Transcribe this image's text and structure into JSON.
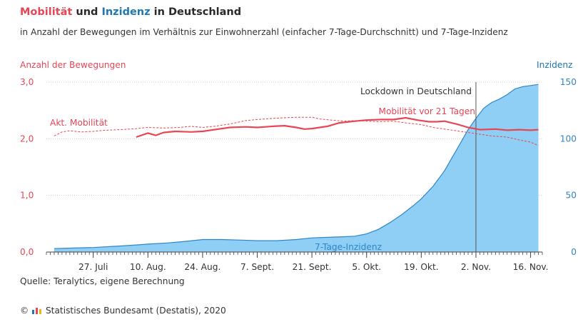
{
  "header": {
    "title_part1": "Mobilität",
    "title_part2": " und ",
    "title_part3": "Inzidenz",
    "title_part4": " in Deutschland",
    "subtitle": "in Anzahl der Bewegungen im Verhältnis zur Einwohnerzahl (einfacher 7-Tage-Durchschnitt) und 7-Tage-Inzidenz"
  },
  "footer": {
    "source": "Quelle: Teralytics, eigene Berechnung",
    "copyright_symbol": "©",
    "copyright_text": "Statistisches Bundesamt (Destatis), 2020"
  },
  "colors": {
    "mobility": "#e84655",
    "incidence_line": "#2f86c6",
    "incidence_fill": "#8fcff5",
    "axis": "#444444",
    "gridline": "#cccccc"
  },
  "chart_data": {
    "type": "line",
    "ylabel_left": "Anzahl der Bewegungen",
    "ylabel_right": "Inzidenz",
    "yticks_left": [
      "0,0",
      "1,0",
      "2,0",
      "3,0"
    ],
    "yticks_right": [
      "0",
      "50",
      "100",
      "150"
    ],
    "ylim_left": [
      0,
      3
    ],
    "ylim_right": [
      0,
      150
    ],
    "xlim": [
      "2020-07-15",
      "2020-11-19"
    ],
    "xticks": [
      {
        "date": "2020-07-27",
        "label": "27. Juli"
      },
      {
        "date": "2020-08-10",
        "label": "10. Aug."
      },
      {
        "date": "2020-08-24",
        "label": "24. Aug."
      },
      {
        "date": "2020-09-07",
        "label": "7. Sept."
      },
      {
        "date": "2020-09-21",
        "label": "21. Sept."
      },
      {
        "date": "2020-10-05",
        "label": "5. Okt."
      },
      {
        "date": "2020-10-19",
        "label": "19. Okt."
      },
      {
        "date": "2020-11-02",
        "label": "2. Nov."
      },
      {
        "date": "2020-11-16",
        "label": "16. Nov."
      }
    ],
    "grid": true,
    "annotations": [
      {
        "date": "2020-11-02",
        "text": "Lockdown in Deutschland"
      }
    ],
    "series": [
      {
        "name": "Akt. Mobilität",
        "axis": "left",
        "style": "dashed",
        "x": [
          "2020-07-17",
          "2020-07-19",
          "2020-07-21",
          "2020-07-24",
          "2020-07-27",
          "2020-07-30",
          "2020-08-03",
          "2020-08-07",
          "2020-08-10",
          "2020-08-14",
          "2020-08-18",
          "2020-08-21",
          "2020-08-24",
          "2020-08-27",
          "2020-08-31",
          "2020-09-04",
          "2020-09-07",
          "2020-09-11",
          "2020-09-14",
          "2020-09-17",
          "2020-09-21",
          "2020-09-23",
          "2020-09-26",
          "2020-09-29",
          "2020-10-02",
          "2020-10-05",
          "2020-10-08",
          "2020-10-12",
          "2020-10-15",
          "2020-10-19",
          "2020-10-22",
          "2020-10-26",
          "2020-10-30",
          "2020-11-02",
          "2020-11-06",
          "2020-11-10",
          "2020-11-13",
          "2020-11-16",
          "2020-11-18"
        ],
        "values": [
          2.05,
          2.12,
          2.14,
          2.12,
          2.13,
          2.15,
          2.16,
          2.18,
          2.2,
          2.19,
          2.2,
          2.22,
          2.2,
          2.22,
          2.26,
          2.32,
          2.34,
          2.36,
          2.37,
          2.38,
          2.38,
          2.35,
          2.33,
          2.31,
          2.32,
          2.31,
          2.3,
          2.31,
          2.28,
          2.25,
          2.2,
          2.16,
          2.12,
          2.09,
          2.05,
          2.03,
          1.98,
          1.94,
          1.88
        ]
      },
      {
        "name": "Mobilität vor 21 Tagen",
        "axis": "left",
        "style": "solid",
        "x": [
          "2020-08-07",
          "2020-08-10",
          "2020-08-12",
          "2020-08-14",
          "2020-08-17",
          "2020-08-21",
          "2020-08-24",
          "2020-08-28",
          "2020-08-31",
          "2020-09-04",
          "2020-09-07",
          "2020-09-11",
          "2020-09-14",
          "2020-09-17",
          "2020-09-19",
          "2020-09-21",
          "2020-09-25",
          "2020-09-28",
          "2020-10-02",
          "2020-10-05",
          "2020-10-09",
          "2020-10-12",
          "2020-10-15",
          "2020-10-18",
          "2020-10-21",
          "2020-10-23",
          "2020-10-25",
          "2020-10-28",
          "2020-10-31",
          "2020-11-03",
          "2020-11-07",
          "2020-11-10",
          "2020-11-13",
          "2020-11-16",
          "2020-11-18"
        ],
        "values": [
          2.03,
          2.1,
          2.06,
          2.11,
          2.13,
          2.12,
          2.13,
          2.17,
          2.2,
          2.21,
          2.2,
          2.22,
          2.23,
          2.2,
          2.17,
          2.18,
          2.22,
          2.28,
          2.31,
          2.33,
          2.34,
          2.34,
          2.37,
          2.33,
          2.3,
          2.3,
          2.31,
          2.26,
          2.2,
          2.16,
          2.17,
          2.15,
          2.16,
          2.15,
          2.16
        ]
      },
      {
        "name": "7-Tage-Inzidenz",
        "axis": "right",
        "style": "area",
        "x": [
          "2020-07-17",
          "2020-07-22",
          "2020-07-27",
          "2020-08-01",
          "2020-08-06",
          "2020-08-10",
          "2020-08-15",
          "2020-08-20",
          "2020-08-24",
          "2020-08-29",
          "2020-09-03",
          "2020-09-07",
          "2020-09-12",
          "2020-09-17",
          "2020-09-21",
          "2020-09-25",
          "2020-09-29",
          "2020-10-02",
          "2020-10-05",
          "2020-10-08",
          "2020-10-11",
          "2020-10-14",
          "2020-10-17",
          "2020-10-19",
          "2020-10-22",
          "2020-10-25",
          "2020-10-27",
          "2020-10-29",
          "2020-10-31",
          "2020-11-02",
          "2020-11-04",
          "2020-11-06",
          "2020-11-08",
          "2020-11-10",
          "2020-11-12",
          "2020-11-14",
          "2020-11-16",
          "2020-11-18"
        ],
        "values": [
          3,
          3.5,
          4,
          5,
          6,
          7,
          8,
          9.5,
          11,
          11,
          10.5,
          10,
          10,
          11,
          12.5,
          13,
          13.5,
          14,
          16,
          20,
          26,
          33,
          41,
          47,
          58,
          72,
          84,
          96,
          108,
          118,
          127,
          132,
          135,
          139,
          144,
          146,
          147,
          148
        ]
      }
    ]
  }
}
